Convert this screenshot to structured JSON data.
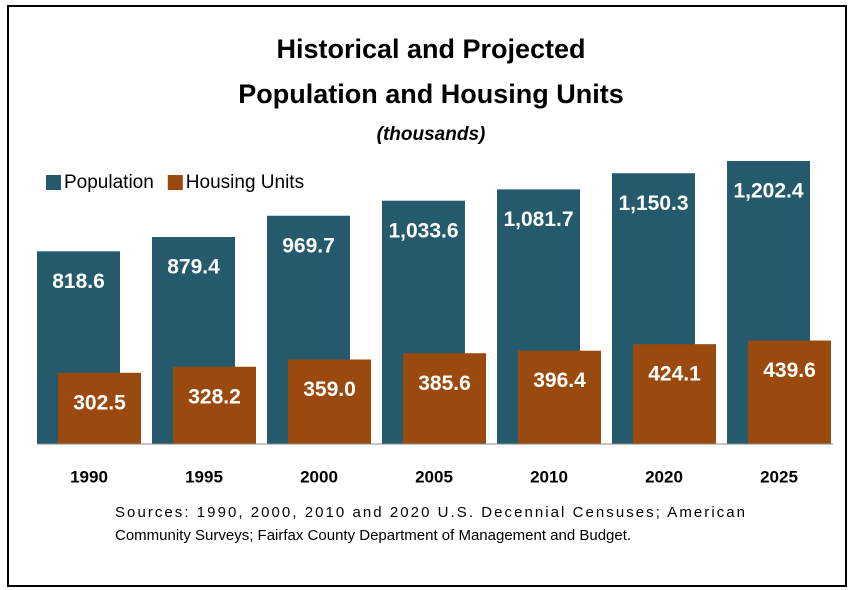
{
  "chart_data": {
    "type": "bar",
    "title": [
      "Historical and Projected",
      "Population and Housing Units"
    ],
    "subtitle": "(thousands)",
    "categories": [
      "1990",
      "1995",
      "2000",
      "2005",
      "2010",
      "2020",
      "2025"
    ],
    "series": [
      {
        "name": "Population",
        "color": "#245a6b",
        "values": [
          818.6,
          879.4,
          969.7,
          1033.6,
          1081.7,
          1150.3,
          1202.4
        ],
        "value_labels": [
          "818.6",
          "879.4",
          "969.7",
          "1,033.6",
          "1,081.7",
          "1,150.3",
          "1,202.4"
        ]
      },
      {
        "name": "Housing Units",
        "color": "#9a4a0e",
        "values": [
          302.5,
          328.2,
          359.0,
          385.6,
          396.4,
          424.1,
          439.6
        ],
        "value_labels": [
          "302.5",
          "328.2",
          "359.0",
          "385.6",
          "396.4",
          "424.1",
          "439.6"
        ]
      }
    ],
    "ylim": [
      0,
      1300
    ],
    "legend": "top-left",
    "source": [
      "Sources: 1990, 2000, 2010 and 2020 U.S. Decennial Censuses; American",
      "Community Surveys; Fairfax County Department of Management and Budget."
    ]
  }
}
